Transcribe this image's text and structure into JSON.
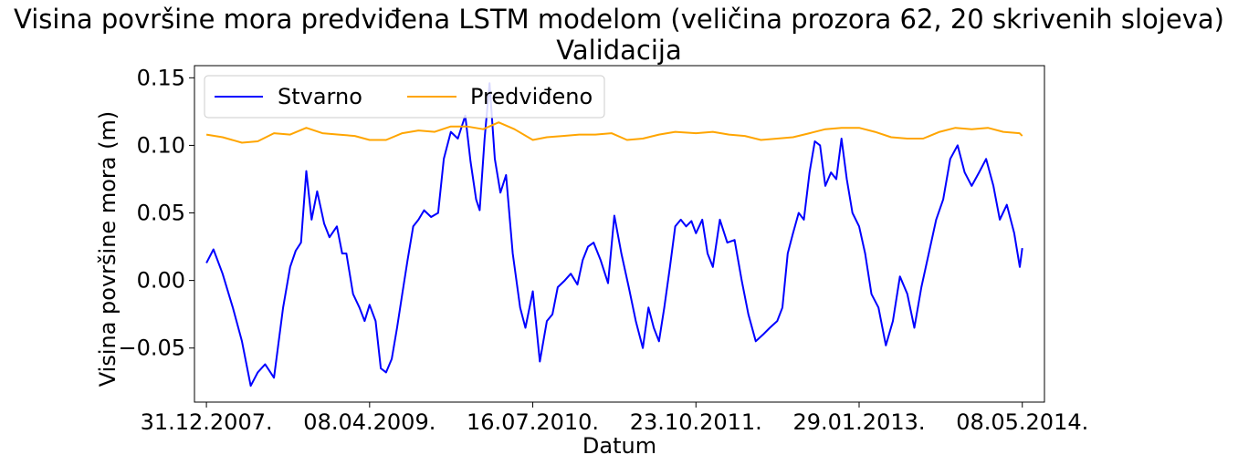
{
  "chart_data": {
    "type": "line",
    "title": "Visina površine mora predviđena LSTM modelom (veličina prozora 62, 20 skrivenih slojeva)",
    "subtitle": "Validacija",
    "xlabel": "Datum",
    "ylabel": "Visina površine mora (m)",
    "x_ticks": [
      "31.12.2007.",
      "08.04.2009.",
      "16.07.2010.",
      "23.10.2011.",
      "29.01.2013.",
      "08.05.2014."
    ],
    "y_ticks": [
      "−0.05",
      "0.00",
      "0.05",
      "0.10",
      "0.15"
    ],
    "y_tick_values": [
      -0.05,
      0.0,
      0.05,
      0.1,
      0.15
    ],
    "xlim": [
      "2007-11-27",
      "2014-07-10"
    ],
    "ylim": [
      -0.09,
      0.159
    ],
    "grid": false,
    "legend_position": "top-left",
    "series": [
      {
        "name": "Stvarno",
        "color": "#0000ff",
        "x": [
          "2007-12-31",
          "2008-01-20",
          "2008-02-15",
          "2008-03-15",
          "2008-04-10",
          "2008-05-05",
          "2008-05-25",
          "2008-06-15",
          "2008-07-10",
          "2008-08-05",
          "2008-08-25",
          "2008-09-10",
          "2008-09-25",
          "2008-10-10",
          "2008-10-25",
          "2008-11-10",
          "2008-11-30",
          "2008-12-15",
          "2009-01-05",
          "2009-01-20",
          "2009-02-01",
          "2009-02-20",
          "2009-03-10",
          "2009-03-25",
          "2009-04-08",
          "2009-04-25",
          "2009-05-10",
          "2009-05-25",
          "2009-06-10",
          "2009-06-25",
          "2009-07-10",
          "2009-07-25",
          "2009-08-10",
          "2009-08-25",
          "2009-09-10",
          "2009-09-30",
          "2009-10-20",
          "2009-11-05",
          "2009-11-25",
          "2009-12-15",
          "2010-01-05",
          "2010-01-20",
          "2010-02-05",
          "2010-02-15",
          "2010-03-01",
          "2010-03-15",
          "2010-03-30",
          "2010-04-15",
          "2010-05-01",
          "2010-05-20",
          "2010-06-10",
          "2010-06-25",
          "2010-07-16",
          "2010-08-05",
          "2010-08-25",
          "2010-09-10",
          "2010-09-25",
          "2010-10-15",
          "2010-11-01",
          "2010-11-20",
          "2010-12-05",
          "2010-12-20",
          "2011-01-05",
          "2011-01-25",
          "2011-02-15",
          "2011-03-05",
          "2011-03-25",
          "2011-04-15",
          "2011-05-05",
          "2011-05-25",
          "2011-06-10",
          "2011-06-25",
          "2011-07-10",
          "2011-07-25",
          "2011-08-10",
          "2011-08-25",
          "2011-09-10",
          "2011-09-25",
          "2011-10-10",
          "2011-10-23",
          "2011-11-10",
          "2011-11-25",
          "2011-12-10",
          "2011-12-30",
          "2012-01-20",
          "2012-02-10",
          "2012-03-01",
          "2012-03-20",
          "2012-04-10",
          "2012-05-01",
          "2012-05-20",
          "2012-06-10",
          "2012-06-25",
          "2012-07-10",
          "2012-07-25",
          "2012-08-10",
          "2012-08-25",
          "2012-09-10",
          "2012-09-25",
          "2012-10-10",
          "2012-10-25",
          "2012-11-10",
          "2012-11-25",
          "2012-12-10",
          "2012-12-25",
          "2013-01-10",
          "2013-01-29",
          "2013-02-15",
          "2013-03-05",
          "2013-03-25",
          "2013-04-15",
          "2013-05-05",
          "2013-05-25",
          "2013-06-15",
          "2013-07-05",
          "2013-07-25",
          "2013-08-15",
          "2013-09-05",
          "2013-09-25",
          "2013-10-15",
          "2013-11-05",
          "2013-11-25",
          "2013-12-15",
          "2014-01-05",
          "2014-01-25",
          "2014-02-15",
          "2014-03-05",
          "2014-03-25",
          "2014-04-15",
          "2014-05-01",
          "2014-05-08"
        ],
        "values": [
          0.013,
          0.023,
          0.005,
          -0.02,
          -0.045,
          -0.078,
          -0.068,
          -0.062,
          -0.072,
          -0.02,
          0.01,
          0.022,
          0.028,
          0.081,
          0.045,
          0.066,
          0.042,
          0.032,
          0.04,
          0.02,
          0.02,
          -0.01,
          -0.02,
          -0.03,
          -0.018,
          -0.03,
          -0.065,
          -0.068,
          -0.058,
          -0.035,
          -0.01,
          0.015,
          0.04,
          0.045,
          0.052,
          0.047,
          0.05,
          0.09,
          0.11,
          0.105,
          0.122,
          0.088,
          0.06,
          0.052,
          0.105,
          0.146,
          0.09,
          0.065,
          0.078,
          0.02,
          -0.02,
          -0.035,
          -0.008,
          -0.06,
          -0.03,
          -0.025,
          -0.005,
          0.0,
          0.005,
          -0.003,
          0.015,
          0.025,
          0.028,
          0.015,
          -0.002,
          0.048,
          0.02,
          -0.005,
          -0.03,
          -0.05,
          -0.02,
          -0.035,
          -0.045,
          -0.02,
          0.01,
          0.04,
          0.045,
          0.04,
          0.044,
          0.035,
          0.045,
          0.02,
          0.01,
          0.045,
          0.028,
          0.03,
          0.0,
          -0.025,
          -0.045,
          -0.04,
          -0.035,
          -0.03,
          -0.02,
          0.02,
          0.035,
          0.05,
          0.045,
          0.08,
          0.103,
          0.1,
          0.07,
          0.08,
          0.075,
          0.105,
          0.075,
          0.05,
          0.04,
          0.02,
          -0.01,
          -0.02,
          -0.048,
          -0.03,
          0.003,
          -0.01,
          -0.035,
          -0.005,
          0.02,
          0.045,
          0.06,
          0.09,
          0.1,
          0.08,
          0.07,
          0.08,
          0.09,
          0.07,
          0.045,
          0.056,
          0.035,
          0.01,
          0.024
        ]
      },
      {
        "name": "Predviđeno",
        "color": "#ffa500",
        "x": [
          "2007-12-31",
          "2008-02-15",
          "2008-04-10",
          "2008-05-25",
          "2008-07-10",
          "2008-08-25",
          "2008-10-10",
          "2008-11-25",
          "2009-01-10",
          "2009-02-25",
          "2009-04-08",
          "2009-05-25",
          "2009-07-10",
          "2009-08-25",
          "2009-10-10",
          "2009-11-25",
          "2010-01-10",
          "2010-02-25",
          "2010-04-10",
          "2010-05-25",
          "2010-07-16",
          "2010-08-25",
          "2010-10-10",
          "2010-11-25",
          "2011-01-10",
          "2011-02-25",
          "2011-04-10",
          "2011-05-25",
          "2011-07-10",
          "2011-08-25",
          "2011-10-23",
          "2011-12-10",
          "2012-01-25",
          "2012-03-10",
          "2012-04-25",
          "2012-06-10",
          "2012-07-25",
          "2012-09-10",
          "2012-10-25",
          "2012-12-10",
          "2013-01-29",
          "2013-03-15",
          "2013-04-30",
          "2013-06-15",
          "2013-07-30",
          "2013-09-15",
          "2013-10-30",
          "2013-12-15",
          "2014-01-30",
          "2014-03-15",
          "2014-04-30",
          "2014-05-08"
        ],
        "values": [
          0.108,
          0.106,
          0.102,
          0.103,
          0.109,
          0.108,
          0.113,
          0.109,
          0.108,
          0.107,
          0.104,
          0.104,
          0.109,
          0.111,
          0.11,
          0.114,
          0.114,
          0.112,
          0.117,
          0.112,
          0.104,
          0.106,
          0.107,
          0.108,
          0.108,
          0.109,
          0.104,
          0.105,
          0.108,
          0.11,
          0.109,
          0.11,
          0.108,
          0.107,
          0.104,
          0.105,
          0.106,
          0.109,
          0.112,
          0.113,
          0.113,
          0.11,
          0.106,
          0.105,
          0.105,
          0.11,
          0.113,
          0.112,
          0.113,
          0.11,
          0.109,
          0.107
        ]
      }
    ]
  }
}
